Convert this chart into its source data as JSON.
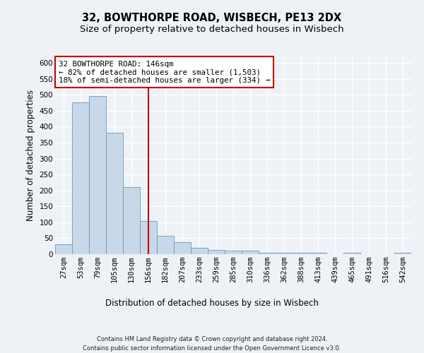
{
  "title1": "32, BOWTHORPE ROAD, WISBECH, PE13 2DX",
  "title2": "Size of property relative to detached houses in Wisbech",
  "xlabel": "Distribution of detached houses by size in Wisbech",
  "ylabel": "Number of detached properties",
  "categories": [
    "27sqm",
    "53sqm",
    "79sqm",
    "105sqm",
    "130sqm",
    "156sqm",
    "182sqm",
    "207sqm",
    "233sqm",
    "259sqm",
    "285sqm",
    "310sqm",
    "336sqm",
    "362sqm",
    "388sqm",
    "413sqm",
    "439sqm",
    "465sqm",
    "491sqm",
    "516sqm",
    "542sqm"
  ],
  "values": [
    30,
    475,
    497,
    380,
    210,
    105,
    57,
    37,
    20,
    13,
    10,
    10,
    5,
    4,
    4,
    5,
    0,
    5,
    0,
    0,
    5
  ],
  "bar_color": "#c8d8e8",
  "bar_edge_color": "#6699bb",
  "vline_x": 5,
  "vline_color": "#cc0000",
  "annotation_line1": "32 BOWTHORPE ROAD: 146sqm",
  "annotation_line2": "← 82% of detached houses are smaller (1,503)",
  "annotation_line3": "18% of semi-detached houses are larger (334) →",
  "annotation_box_color": "#ffffff",
  "annotation_box_edge": "#cc0000",
  "ylim": [
    0,
    620
  ],
  "yticks": [
    0,
    50,
    100,
    150,
    200,
    250,
    300,
    350,
    400,
    450,
    500,
    550,
    600
  ],
  "footnote1": "Contains HM Land Registry data © Crown copyright and database right 2024.",
  "footnote2": "Contains public sector information licensed under the Open Government Licence v3.0.",
  "bg_color": "#eef2f7",
  "grid_color": "#ffffff",
  "title_fontsize": 10.5,
  "subtitle_fontsize": 9.5,
  "tick_fontsize": 7.5,
  "label_fontsize": 8.5,
  "annotation_fontsize": 7.8,
  "footnote_fontsize": 6.0
}
